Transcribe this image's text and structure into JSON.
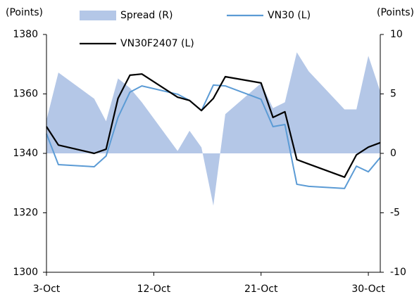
{
  "chart_data": {
    "type": "line",
    "y_label": "(Points)",
    "y2_label": "(Points)",
    "x": [
      3,
      4,
      7,
      8,
      9,
      10,
      11,
      14,
      15,
      16,
      17,
      18,
      21,
      22,
      23,
      24,
      25,
      28,
      29,
      30,
      31
    ],
    "xlim": [
      3,
      31
    ],
    "xticks": [
      {
        "value": 3,
        "label": "3-Oct"
      },
      {
        "value": 12,
        "label": "12-Oct"
      },
      {
        "value": 21,
        "label": "21-Oct"
      },
      {
        "value": 30,
        "label": "30-Oct"
      }
    ],
    "ylim": [
      1300,
      1380
    ],
    "yticks": [
      1300,
      1320,
      1340,
      1360,
      1380
    ],
    "y2lim": [
      -10,
      10
    ],
    "y2ticks": [
      -10,
      -5,
      0,
      5,
      10
    ],
    "series": [
      {
        "name": "Spread (R)",
        "type": "area",
        "axis": "y2",
        "color": "#b4c7e7",
        "values": [
          2.8,
          6.8,
          4.6,
          2.7,
          6.3,
          5.5,
          4.3,
          0.2,
          1.9,
          0.5,
          -4.4,
          3.3,
          5.9,
          3.8,
          4.3,
          8.5,
          6.9,
          3.7,
          3.7,
          8.2,
          5.2
        ]
      },
      {
        "name": "VN30 (L)",
        "type": "line",
        "color": "#5b9bd5",
        "values": [
          1346.6,
          1336.2,
          1335.5,
          1339.1,
          1352.1,
          1360.6,
          1362.7,
          1359.9,
          1357.8,
          1354.4,
          1363.0,
          1362.7,
          1358.2,
          1349.0,
          1349.7,
          1329.6,
          1328.9,
          1328.2,
          1335.7,
          1333.8,
          1338.6
        ]
      },
      {
        "name": "VN30F2407 (L)",
        "type": "line",
        "color": "#000000",
        "values": [
          1349.0,
          1342.8,
          1340.0,
          1341.4,
          1358.5,
          1366.3,
          1366.7,
          1358.9,
          1357.8,
          1354.4,
          1358.5,
          1365.8,
          1363.7,
          1352.1,
          1354.0,
          1337.9,
          1336.4,
          1332.0,
          1339.5,
          1342.1,
          1343.6
        ]
      }
    ]
  }
}
